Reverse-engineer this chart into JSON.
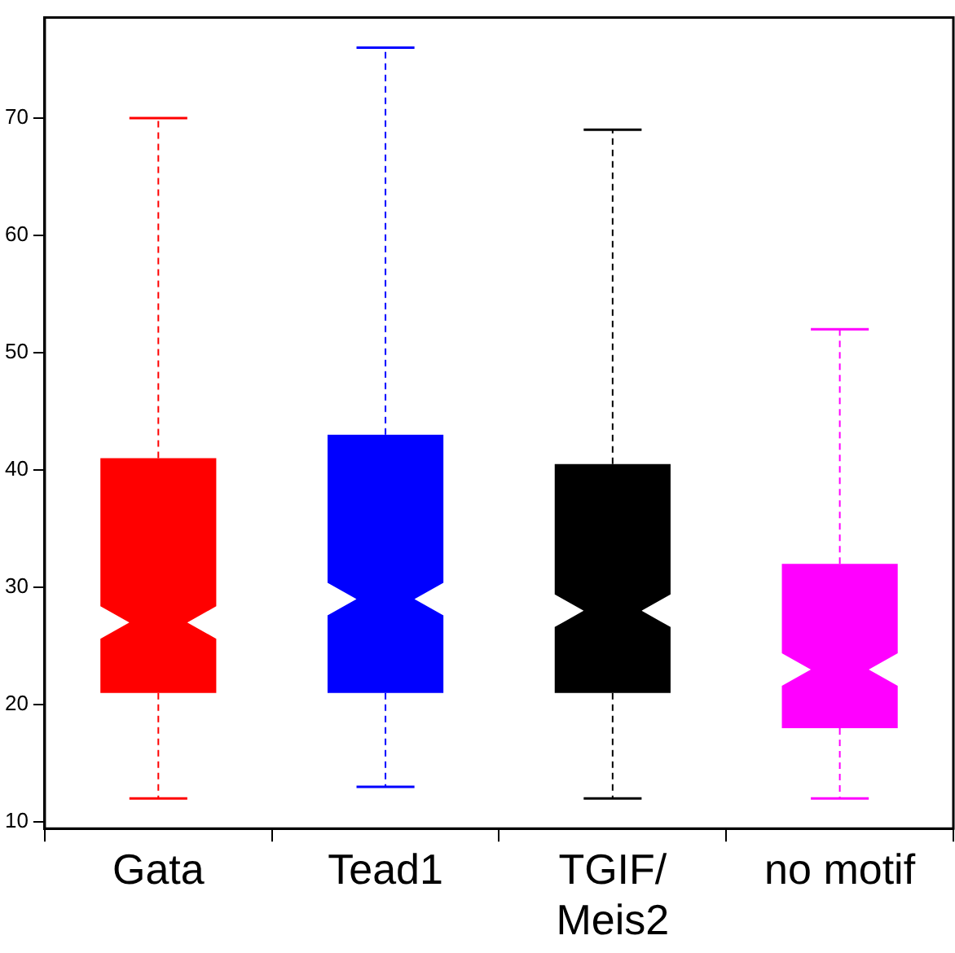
{
  "chart_data": {
    "type": "box",
    "categories": [
      "Gata",
      "Tead1",
      "TGIF/\nMeis2",
      "no motif"
    ],
    "colors": [
      "#ff0000",
      "#0000ff",
      "#000000",
      "#ff00ff"
    ],
    "boxes": [
      {
        "low": 12,
        "q1": 21,
        "median": 27,
        "q3": 41,
        "high": 70
      },
      {
        "low": 13,
        "q1": 21,
        "median": 29,
        "q3": 43,
        "high": 76
      },
      {
        "low": 12,
        "q1": 21,
        "median": 28,
        "q3": 40.5,
        "high": 69
      },
      {
        "low": 12,
        "q1": 18,
        "median": 23,
        "q3": 32,
        "high": 52
      }
    ],
    "ylim": [
      9.44,
      78.56
    ],
    "yticks": [
      10,
      20,
      30,
      40,
      50,
      60,
      70
    ]
  }
}
